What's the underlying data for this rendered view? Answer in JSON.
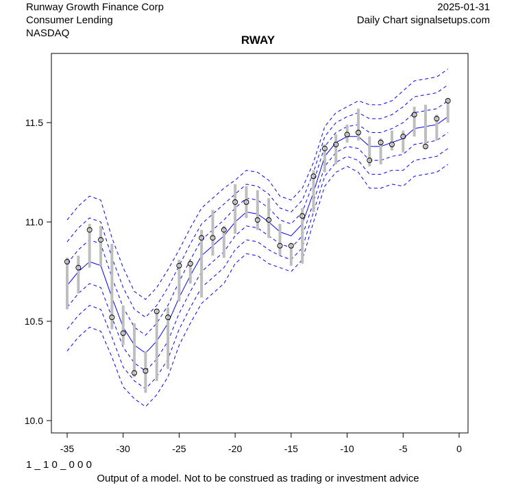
{
  "header": {
    "company": "Runway Growth Finance Corp",
    "industry": "Consumer Lending",
    "exchange": "NASDAQ",
    "date": "2025-01-31",
    "source": "Daily Chart signalsetups.com"
  },
  "footer": {
    "code": "1 _ 1 0 _ 0 0 0",
    "disclaimer": "Output of a model. Not to be construed as trading or investment advice"
  },
  "chart_data": {
    "type": "line",
    "title": "RWAY",
    "xlim": [
      -36,
      0
    ],
    "ylim": [
      9.96,
      11.84
    ],
    "xticks": [
      -35,
      -30,
      -25,
      -20,
      -15,
      -10,
      -5,
      0
    ],
    "yticks": [
      10.0,
      10.5,
      11.0,
      11.5
    ],
    "x": [
      -35,
      -34,
      -33,
      -32,
      -31,
      -30,
      -29,
      -28,
      -27,
      -26,
      -25,
      -24,
      -23,
      -22,
      -21,
      -20,
      -19,
      -18,
      -17,
      -16,
      -15,
      -14,
      -13,
      -12,
      -11,
      -10,
      -9,
      -8,
      -7,
      -6,
      -5,
      -4,
      -3,
      -2,
      -1
    ],
    "close": [
      10.8,
      10.77,
      10.96,
      10.91,
      10.52,
      10.44,
      10.24,
      10.25,
      10.55,
      10.52,
      10.78,
      10.79,
      10.92,
      10.92,
      10.96,
      11.1,
      11.1,
      11.01,
      11.01,
      10.88,
      10.88,
      11.03,
      11.23,
      11.37,
      11.39,
      11.44,
      11.45,
      11.31,
      11.4,
      11.39,
      11.43,
      11.54,
      11.38,
      11.52,
      11.61
    ],
    "high": [
      10.82,
      10.83,
      10.99,
      10.98,
      10.89,
      10.58,
      10.49,
      10.35,
      10.56,
      10.57,
      10.81,
      10.8,
      10.96,
      11.06,
      10.98,
      11.19,
      11.18,
      11.16,
      11.12,
      10.99,
      10.89,
      11.07,
      11.26,
      11.39,
      11.44,
      11.49,
      11.57,
      11.43,
      11.42,
      11.46,
      11.46,
      11.58,
      11.59,
      11.54,
      11.62
    ],
    "low": [
      10.56,
      10.64,
      10.77,
      10.78,
      10.46,
      10.38,
      10.22,
      10.14,
      10.2,
      10.26,
      10.6,
      10.69,
      10.62,
      10.83,
      10.82,
      10.94,
      11.02,
      10.96,
      10.92,
      10.83,
      10.78,
      10.79,
      11.05,
      11.25,
      11.29,
      11.4,
      11.41,
      11.28,
      11.29,
      11.36,
      11.35,
      11.43,
      11.37,
      11.41,
      11.5
    ],
    "model": [
      10.68,
      10.75,
      10.8,
      10.78,
      10.62,
      10.47,
      10.38,
      10.34,
      10.4,
      10.49,
      10.62,
      10.73,
      10.83,
      10.88,
      10.93,
      11.0,
      11.05,
      11.04,
      11.0,
      10.95,
      10.93,
      10.99,
      11.15,
      11.33,
      11.4,
      11.43,
      11.43,
      11.38,
      11.38,
      11.4,
      11.42,
      11.47,
      11.48,
      11.49,
      11.53
    ],
    "band_sigma": [
      0.11,
      0.11,
      0.11,
      0.11,
      0.1,
      0.1,
      0.09,
      0.09,
      0.09,
      0.09,
      0.08,
      0.08,
      0.08,
      0.08,
      0.08,
      0.07,
      0.07,
      0.07,
      0.07,
      0.06,
      0.06,
      0.06,
      0.05,
      0.05,
      0.05,
      0.05,
      0.06,
      0.07,
      0.07,
      0.07,
      0.08,
      0.08,
      0.08,
      0.08,
      0.08
    ],
    "colors": {
      "model": "#0000ff",
      "bands": "#0000ff",
      "range": "#bebebe",
      "close": "#000000"
    }
  }
}
